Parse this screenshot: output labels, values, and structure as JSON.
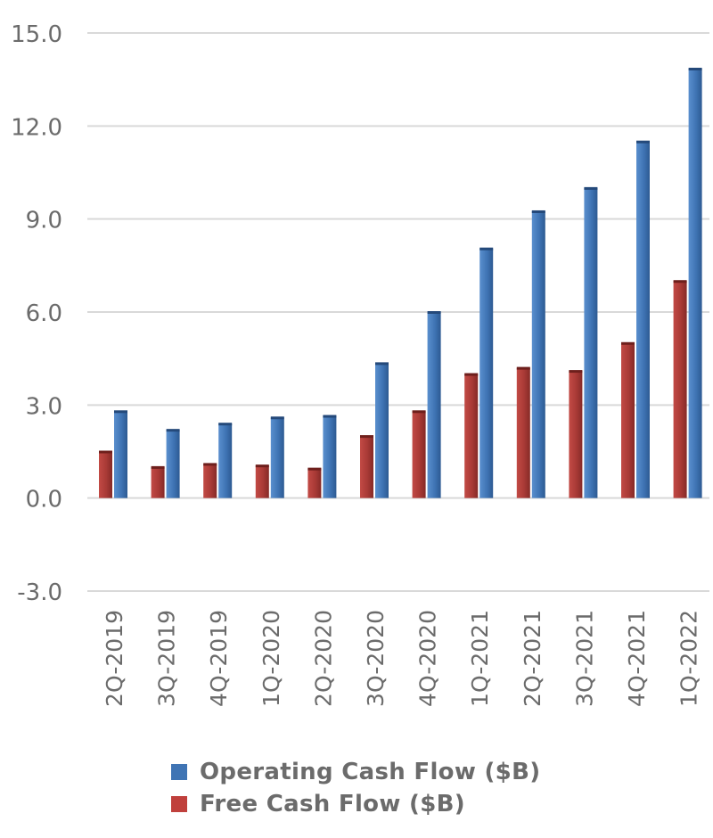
{
  "chart_data": {
    "type": "bar",
    "categories": [
      "2Q-2019",
      "3Q-2019",
      "4Q-2019",
      "1Q-2020",
      "2Q-2020",
      "3Q-2020",
      "4Q-2020",
      "1Q-2021",
      "2Q-2021",
      "3Q-2021",
      "4Q-2021",
      "1Q-2022"
    ],
    "series": [
      {
        "name": "Free Cash Flow ($B)",
        "color": "#a93a36",
        "values": [
          1.5,
          1.0,
          1.1,
          1.05,
          0.95,
          2.0,
          2.8,
          4.0,
          4.2,
          4.1,
          5.0,
          7.0
        ]
      },
      {
        "name": "Operating Cash Flow ($B)",
        "color": "#3f74b4",
        "values": [
          2.8,
          2.2,
          2.4,
          2.6,
          2.65,
          4.35,
          6.0,
          8.05,
          9.25,
          10.0,
          11.5,
          13.85
        ]
      }
    ],
    "yticks": [
      "15.0",
      "12.0",
      "9.0",
      "6.0",
      "3.0",
      "0.0",
      "-3.0"
    ],
    "ylim": [
      -3,
      15
    ],
    "grid": true,
    "legend_position": "bottom",
    "title": "",
    "xlabel": "",
    "ylabel": ""
  },
  "legend": {
    "items": [
      {
        "label": "Operating Cash Flow ($B)",
        "color": "#3f74b4"
      },
      {
        "label": "Free Cash Flow ($B)",
        "color": "#c0403c"
      }
    ]
  }
}
